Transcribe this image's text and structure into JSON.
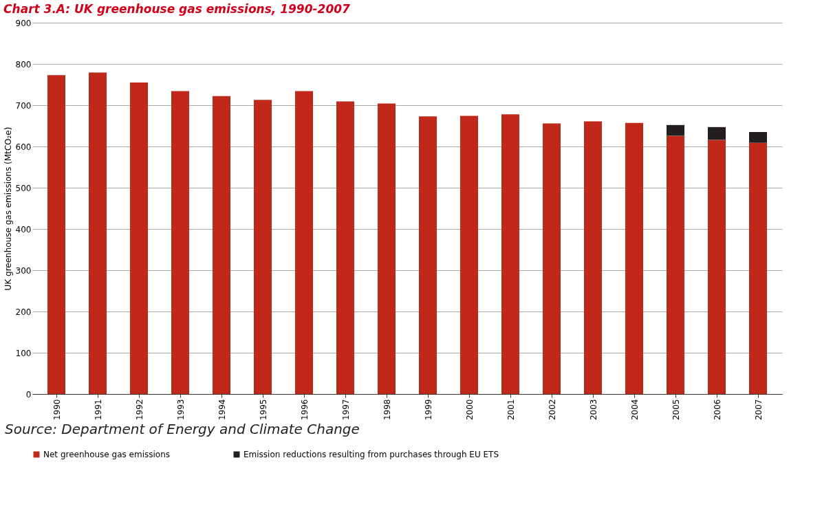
{
  "chart_data": {
    "type": "bar",
    "title": "Chart 3.A: UK greenhouse gas emissions, 1990-2007",
    "ylabel": "UK greenhouse gas emissions (MtCO₂e)",
    "categories": [
      "1990",
      "1991",
      "1992",
      "1993",
      "1994",
      "1995",
      "1996",
      "1997",
      "1998",
      "1999",
      "2000",
      "2001",
      "2002",
      "2003",
      "2004",
      "2005",
      "2006",
      "2007"
    ],
    "stacked": true,
    "series": [
      {
        "name": "Net greenhouse gas emissions",
        "color": "#c0291a",
        "values": [
          773,
          779,
          755,
          734,
          722,
          713,
          734,
          709,
          704,
          673,
          674,
          678,
          656,
          661,
          657,
          626,
          616,
          609
        ]
      },
      {
        "name": "Emission reductions resulting from purchases through EU ETS",
        "color": "#231f20",
        "values": [
          null,
          null,
          null,
          null,
          null,
          null,
          null,
          null,
          null,
          null,
          null,
          null,
          null,
          null,
          null,
          26,
          31,
          26
        ]
      }
    ],
    "ylim": [
      0,
      900
    ],
    "yticks": [
      0,
      100,
      200,
      300,
      400,
      500,
      600,
      700,
      800,
      900
    ],
    "grid": "y",
    "legend": "bottom",
    "annotations": [
      "Source: Department of Energy and Climate Change"
    ]
  }
}
